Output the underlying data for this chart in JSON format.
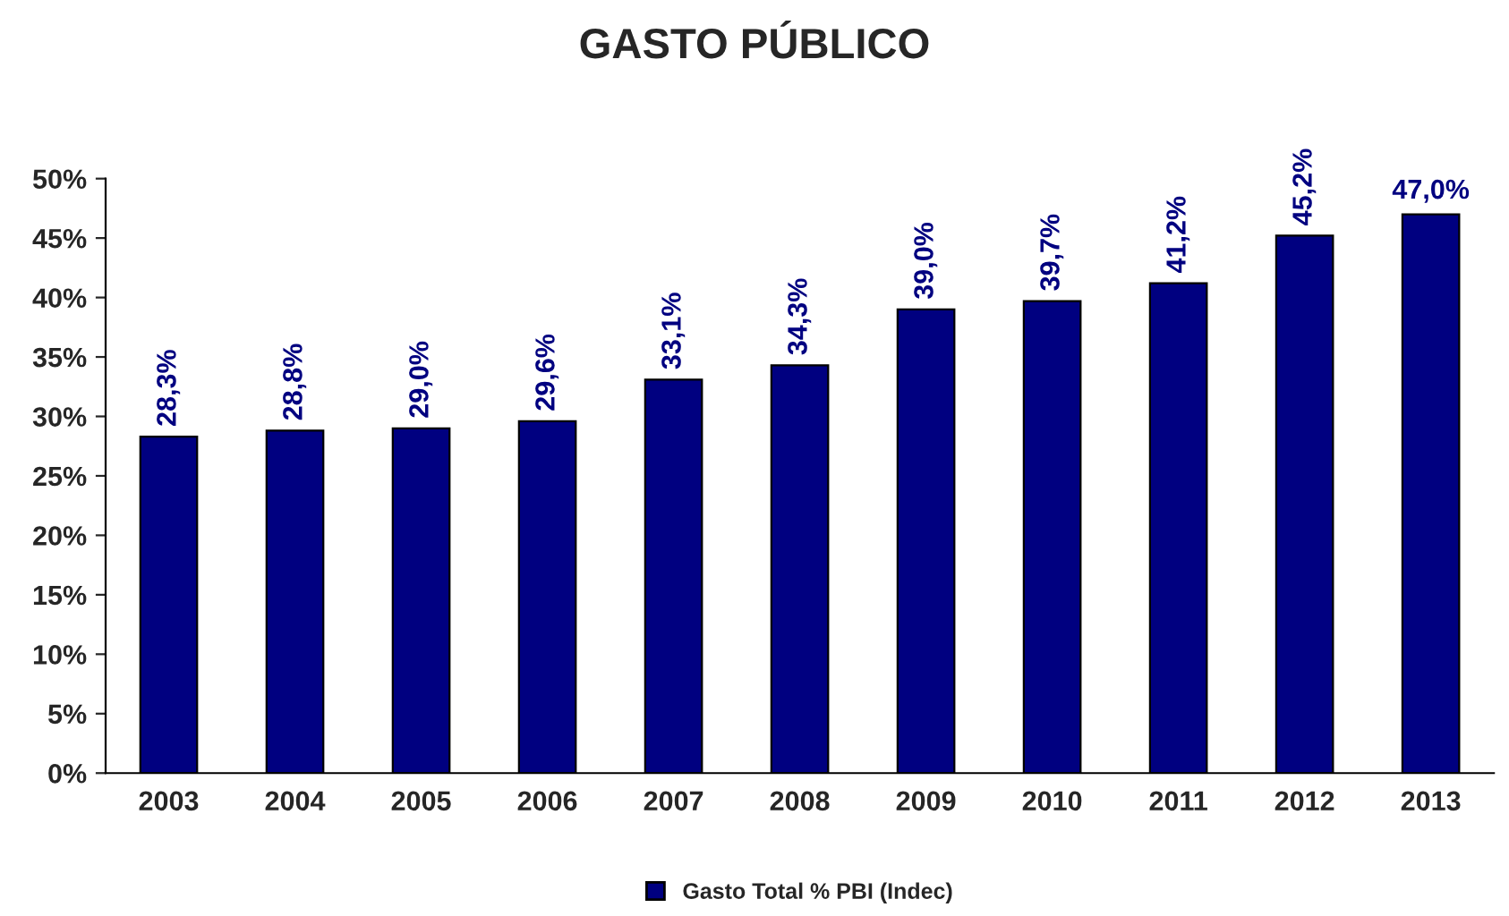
{
  "chart_data": {
    "type": "bar",
    "title": "GASTO PÚBLICO",
    "categories": [
      "2003",
      "2004",
      "2005",
      "2006",
      "2007",
      "2008",
      "2009",
      "2010",
      "2011",
      "2012",
      "2013"
    ],
    "series": [
      {
        "name": "Gasto Total % PBI (Indec)",
        "color": "#000080",
        "values": [
          28.3,
          28.8,
          29.0,
          29.6,
          33.1,
          34.3,
          39.0,
          39.7,
          41.2,
          45.2,
          47.0
        ],
        "value_labels": [
          "28,3%",
          "28,8%",
          "29,0%",
          "29,6%",
          "33,1%",
          "34,3%",
          "39,0%",
          "39,7%",
          "41,2%",
          "45,2%",
          "47,0%"
        ]
      }
    ],
    "ylim": [
      0,
      50
    ],
    "yticks": [
      {
        "value": 0,
        "label": "0%"
      },
      {
        "value": 5,
        "label": "5%"
      },
      {
        "value": 10,
        "label": "10%"
      },
      {
        "value": 15,
        "label": "15%"
      },
      {
        "value": 20,
        "label": "20%"
      },
      {
        "value": 25,
        "label": "25%"
      },
      {
        "value": 30,
        "label": "30%"
      },
      {
        "value": 35,
        "label": "35%"
      },
      {
        "value": 40,
        "label": "40%"
      },
      {
        "value": 45,
        "label": "45%"
      },
      {
        "value": 50,
        "label": "50%"
      }
    ],
    "grid": false,
    "legend": "bottom"
  }
}
